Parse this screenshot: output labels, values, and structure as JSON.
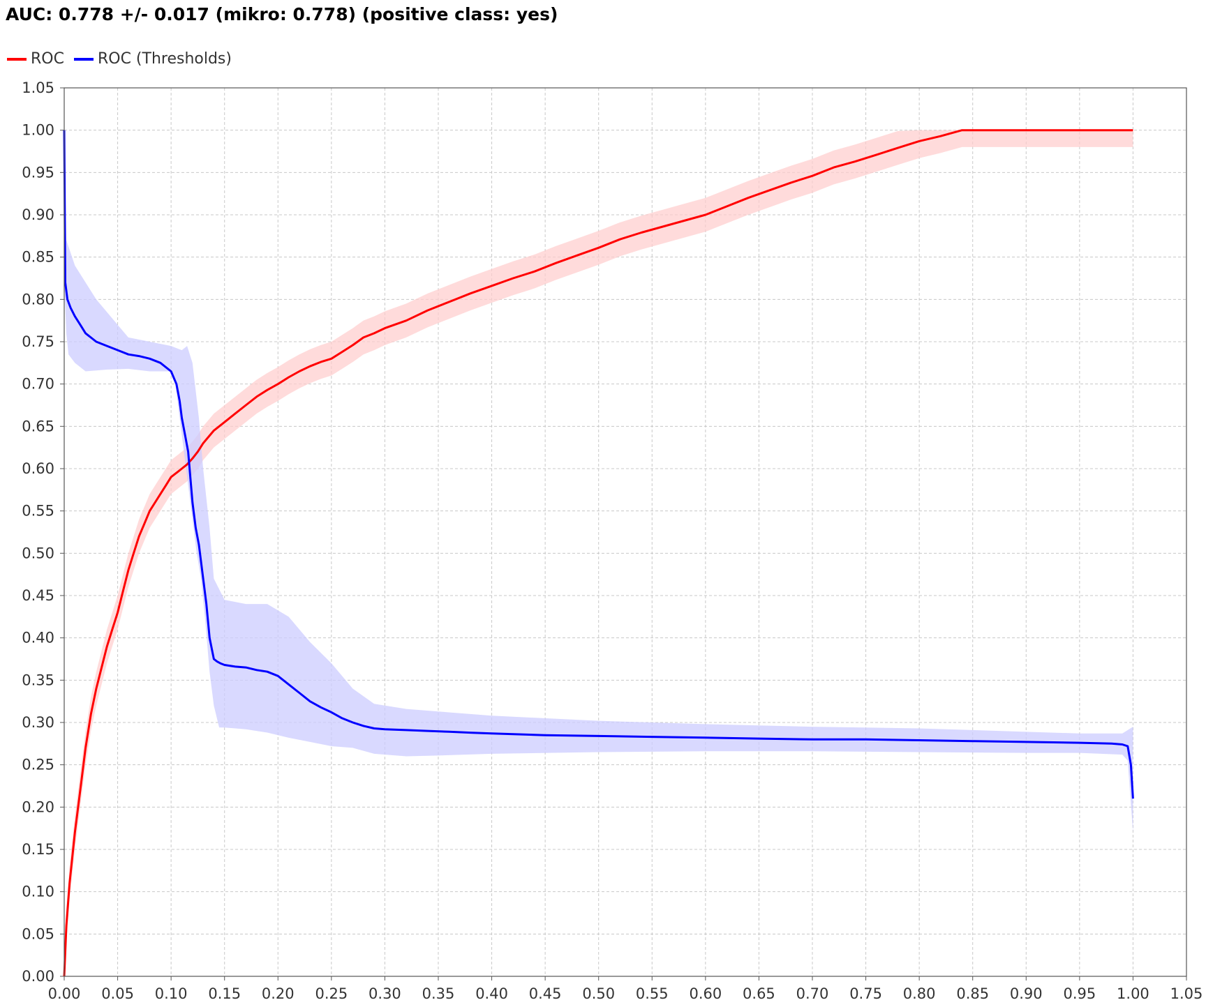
{
  "chart_data": {
    "type": "line",
    "title": "AUC: 0.778 +/- 0.017 (mikro: 0.778) (positive class: yes)",
    "xlabel": "",
    "ylabel": "",
    "xlim": [
      0,
      1.05
    ],
    "ylim": [
      0,
      1.05
    ],
    "grid": true,
    "legend_position": "top-left",
    "x_ticks": [
      "0.00",
      "0.05",
      "0.10",
      "0.15",
      "0.20",
      "0.25",
      "0.30",
      "0.35",
      "0.40",
      "0.45",
      "0.50",
      "0.55",
      "0.60",
      "0.65",
      "0.70",
      "0.75",
      "0.80",
      "0.85",
      "0.90",
      "0.95",
      "1.00",
      "1.05"
    ],
    "y_ticks": [
      "0.00",
      "0.05",
      "0.10",
      "0.15",
      "0.20",
      "0.25",
      "0.30",
      "0.35",
      "0.40",
      "0.45",
      "0.50",
      "0.55",
      "0.60",
      "0.65",
      "0.70",
      "0.75",
      "0.80",
      "0.85",
      "0.90",
      "0.95",
      "1.00",
      "1.05"
    ],
    "series": [
      {
        "name": "ROC",
        "color": "#ff0000",
        "band_color": "#ffcccc",
        "x": [
          0.0,
          0.002,
          0.005,
          0.01,
          0.015,
          0.02,
          0.025,
          0.03,
          0.035,
          0.04,
          0.045,
          0.05,
          0.055,
          0.06,
          0.065,
          0.07,
          0.075,
          0.08,
          0.085,
          0.09,
          0.095,
          0.1,
          0.105,
          0.11,
          0.115,
          0.12,
          0.125,
          0.13,
          0.14,
          0.15,
          0.16,
          0.17,
          0.18,
          0.19,
          0.2,
          0.21,
          0.22,
          0.23,
          0.24,
          0.25,
          0.26,
          0.27,
          0.28,
          0.29,
          0.3,
          0.32,
          0.34,
          0.36,
          0.38,
          0.4,
          0.42,
          0.44,
          0.46,
          0.48,
          0.5,
          0.52,
          0.54,
          0.56,
          0.58,
          0.6,
          0.62,
          0.64,
          0.66,
          0.68,
          0.7,
          0.72,
          0.74,
          0.76,
          0.78,
          0.8,
          0.82,
          0.84,
          0.86,
          0.88,
          0.9,
          0.92,
          0.94,
          0.96,
          0.98,
          0.99,
          1.0
        ],
        "y": [
          0.0,
          0.06,
          0.11,
          0.17,
          0.22,
          0.27,
          0.31,
          0.34,
          0.365,
          0.39,
          0.41,
          0.43,
          0.455,
          0.48,
          0.5,
          0.52,
          0.535,
          0.55,
          0.56,
          0.57,
          0.58,
          0.59,
          0.595,
          0.6,
          0.605,
          0.612,
          0.62,
          0.63,
          0.645,
          0.655,
          0.665,
          0.675,
          0.685,
          0.693,
          0.7,
          0.708,
          0.715,
          0.721,
          0.726,
          0.73,
          0.738,
          0.746,
          0.755,
          0.76,
          0.766,
          0.775,
          0.787,
          0.797,
          0.807,
          0.816,
          0.825,
          0.833,
          0.843,
          0.852,
          0.861,
          0.871,
          0.879,
          0.886,
          0.893,
          0.9,
          0.91,
          0.92,
          0.929,
          0.938,
          0.946,
          0.956,
          0.963,
          0.971,
          0.979,
          0.987,
          0.993,
          1.0,
          1.0,
          1.0,
          1.0,
          1.0,
          1.0,
          1.0,
          1.0,
          1.0,
          1.0
        ],
        "band_halfwidth": 0.02
      },
      {
        "name": "ROC (Thresholds)",
        "color": "#0000ff",
        "band_color": "#ccccff",
        "x": [
          0.0,
          0.001,
          0.003,
          0.006,
          0.01,
          0.015,
          0.02,
          0.03,
          0.04,
          0.05,
          0.06,
          0.07,
          0.08,
          0.09,
          0.1,
          0.105,
          0.108,
          0.11,
          0.113,
          0.116,
          0.12,
          0.123,
          0.126,
          0.13,
          0.133,
          0.136,
          0.14,
          0.143,
          0.146,
          0.15,
          0.16,
          0.17,
          0.18,
          0.19,
          0.2,
          0.21,
          0.22,
          0.23,
          0.24,
          0.25,
          0.26,
          0.27,
          0.28,
          0.29,
          0.3,
          0.32,
          0.34,
          0.36,
          0.38,
          0.4,
          0.45,
          0.5,
          0.55,
          0.6,
          0.65,
          0.7,
          0.75,
          0.8,
          0.85,
          0.9,
          0.95,
          0.98,
          0.99,
          0.995,
          0.998,
          1.0
        ],
        "y": [
          1.0,
          0.82,
          0.8,
          0.79,
          0.78,
          0.77,
          0.76,
          0.75,
          0.745,
          0.74,
          0.735,
          0.733,
          0.73,
          0.725,
          0.715,
          0.7,
          0.68,
          0.66,
          0.64,
          0.62,
          0.56,
          0.53,
          0.51,
          0.47,
          0.44,
          0.4,
          0.375,
          0.372,
          0.37,
          0.368,
          0.366,
          0.365,
          0.362,
          0.36,
          0.355,
          0.345,
          0.335,
          0.325,
          0.318,
          0.312,
          0.305,
          0.3,
          0.296,
          0.293,
          0.292,
          0.291,
          0.29,
          0.289,
          0.288,
          0.287,
          0.285,
          0.284,
          0.283,
          0.282,
          0.281,
          0.28,
          0.28,
          0.279,
          0.278,
          0.277,
          0.276,
          0.275,
          0.274,
          0.272,
          0.25,
          0.21
        ],
        "band_halfwidth": 0.0
      }
    ]
  }
}
